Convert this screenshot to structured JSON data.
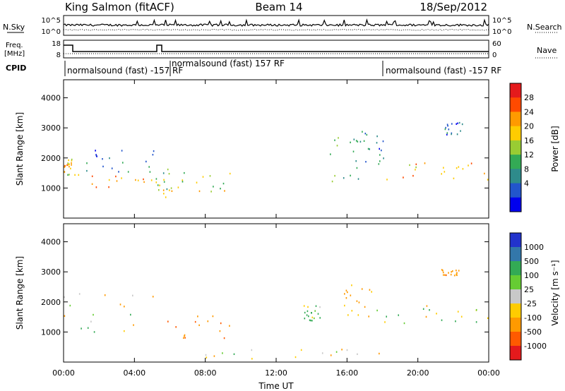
{
  "header": {
    "station": "King Salmon (fitACF)",
    "beam": "Beam 14",
    "date": "18/Sep/2012"
  },
  "noise_panel": {
    "left_label": "N.Sky",
    "right_label": "N.Search",
    "left_ticks": [
      "10^5",
      "10^0"
    ],
    "right_ticks": [
      "10^5",
      "10^0"
    ]
  },
  "freq_panel": {
    "left_label_line1": "Freq.",
    "left_label_line2": "[MHz]",
    "right_label": "Nave",
    "left_ticks": [
      "18",
      "8"
    ],
    "right_ticks": [
      "60",
      "0"
    ]
  },
  "cpid": {
    "label": "CPID",
    "segments": [
      {
        "start_hour": 0.0,
        "end_hour": 5.2,
        "text": "normalsound (fast) -157 RF"
      },
      {
        "start_hour": 5.2,
        "end_hour": 18.0,
        "text": "normalsound (fast) 157 RF"
      },
      {
        "start_hour": 18.0,
        "end_hour": 24.0,
        "text": "normalsound (fast) -157 RF"
      }
    ]
  },
  "x_axis": {
    "label": "Time UT",
    "ticks": [
      "00:00",
      "04:00",
      "08:00",
      "12:00",
      "16:00",
      "20:00",
      "00:00"
    ]
  },
  "chart_data": [
    {
      "type": "heatmap",
      "name": "power",
      "ylabel": "Slant Range [km]",
      "xlim_hours": [
        0,
        24
      ],
      "ylim_km": [
        0,
        4600
      ],
      "yticks": [
        1000,
        2000,
        3000,
        4000
      ],
      "colorbar": {
        "label": "Power [dB]",
        "ticks": [
          "28",
          "24",
          "20",
          "16",
          "12",
          "8",
          "4"
        ],
        "colors": [
          "#e41a1c",
          "#ff4a00",
          "#ff9a00",
          "#ffcc00",
          "#99cc33",
          "#33aa55",
          "#2e8b8b",
          "#2255cc",
          "#0000ee"
        ]
      },
      "echo_regions": [
        {
          "t0": 0.0,
          "t1": 0.45,
          "r0": 1450,
          "r1": 2000,
          "level": 20
        },
        {
          "t0": 0.45,
          "t1": 5.2,
          "r0": 1000,
          "r1": 1500,
          "level": 22
        },
        {
          "t0": 0.45,
          "t1": 5.2,
          "r0": 1500,
          "r1": 2300,
          "level": 8
        },
        {
          "t0": 5.2,
          "t1": 6.0,
          "r0": 700,
          "r1": 1700,
          "level": 16
        },
        {
          "t0": 6.0,
          "t1": 9.6,
          "r0": 900,
          "r1": 1600,
          "level": 18
        },
        {
          "t0": 14.8,
          "t1": 17.3,
          "r0": 1200,
          "r1": 2700,
          "level": 12
        },
        {
          "t0": 16.5,
          "t1": 18.2,
          "r0": 1800,
          "r1": 2900,
          "level": 8
        },
        {
          "t0": 18.2,
          "t1": 24.0,
          "r0": 1300,
          "r1": 1900,
          "level": 22
        },
        {
          "t0": 21.5,
          "t1": 22.5,
          "r0": 2800,
          "r1": 3200,
          "level": 6
        }
      ]
    },
    {
      "type": "heatmap",
      "name": "velocity",
      "ylabel": "Slant Range [km]",
      "xlim_hours": [
        0,
        24
      ],
      "ylim_km": [
        0,
        4600
      ],
      "yticks": [
        1000,
        2000,
        3000,
        4000
      ],
      "colorbar": {
        "label": "Velocity [m s⁻¹]",
        "ticks": [
          "1000",
          "500",
          "100",
          "25",
          "-25",
          "-100",
          "-500",
          "-1000"
        ],
        "colors": [
          "#2233cc",
          "#3377aa",
          "#33aa55",
          "#66cc33",
          "#c8c8c8",
          "#ffcc00",
          "#ff9a00",
          "#ff5a00",
          "#e41a1c"
        ]
      },
      "echo_regions": [
        {
          "t0": 0.0,
          "t1": 5.2,
          "r0": 1000,
          "r1": 2300,
          "level": 0
        },
        {
          "t0": 5.2,
          "t1": 9.6,
          "r0": 800,
          "r1": 1600,
          "level": -300
        },
        {
          "t0": 13.5,
          "t1": 14.5,
          "r0": 1400,
          "r1": 1900,
          "level": 100
        },
        {
          "t0": 15.8,
          "t1": 17.4,
          "r0": 1000,
          "r1": 2800,
          "level": -150
        },
        {
          "t0": 17.5,
          "t1": 24.0,
          "r0": 1300,
          "r1": 2000,
          "level": 0
        },
        {
          "t0": 21.3,
          "t1": 22.3,
          "r0": 2900,
          "r1": 3100,
          "level": -200
        },
        {
          "t0": 8.0,
          "t1": 18.0,
          "r0": 100,
          "r1": 450,
          "level": -50
        }
      ]
    }
  ]
}
